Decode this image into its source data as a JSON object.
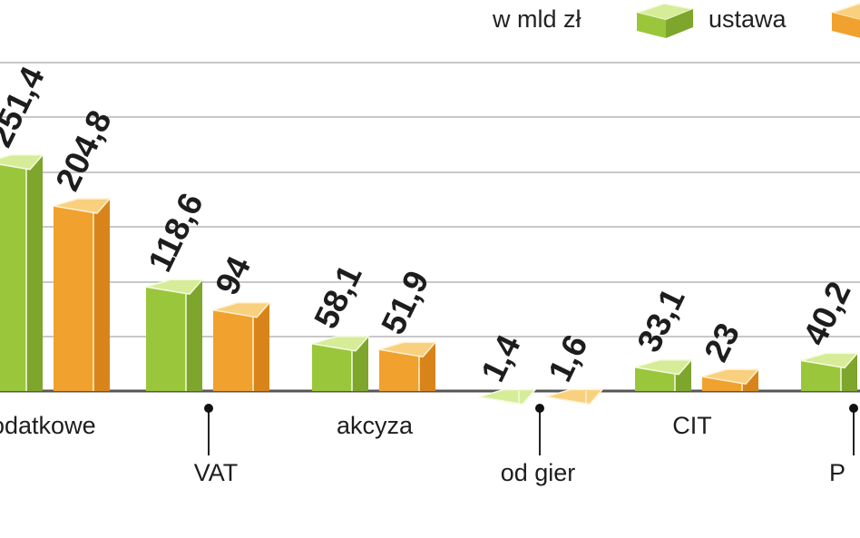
{
  "chart_data": {
    "type": "bar",
    "title": "",
    "unit": "w mld zł",
    "categories": [
      "podatkowe",
      "VAT",
      "akcyza",
      "od gier",
      "CIT",
      "PIT"
    ],
    "categories_visible": [
      "odatkowe",
      "VAT",
      "akcyza",
      "od gier",
      "CIT",
      "P"
    ],
    "series": [
      {
        "name": "ustawa",
        "values": [
          251.4,
          118.6,
          58.1,
          1.4,
          33.1,
          40.2
        ],
        "labels": [
          "251,4",
          "118,6",
          "58,1",
          "1,4",
          "33,1",
          "40,2"
        ]
      },
      {
        "name": "",
        "values": [
          204.8,
          94,
          51.9,
          1.6,
          23,
          null
        ],
        "labels": [
          "204,8",
          "94",
          "51,9",
          "1,6",
          "23",
          ""
        ]
      }
    ],
    "legend_position": "top-right",
    "grid": true,
    "colors": {
      "ustawa": "#9ac63c",
      "series2": "#f0a12e",
      "baseline": "#555555",
      "grid": "#c8c8c8"
    }
  }
}
